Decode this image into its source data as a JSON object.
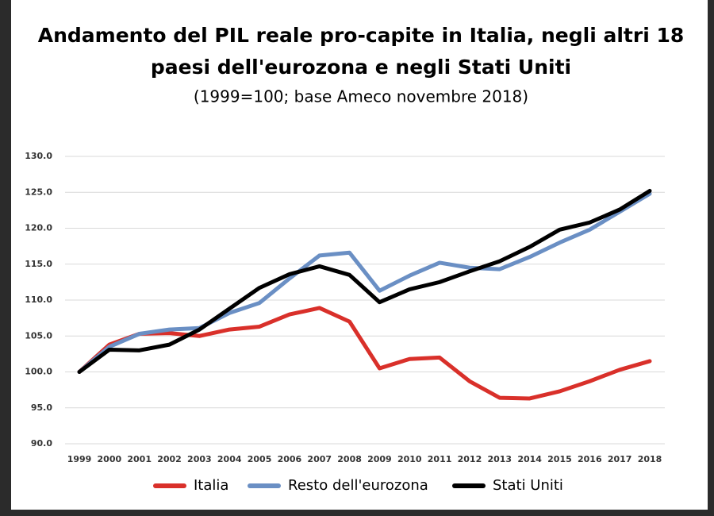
{
  "chart_data": {
    "type": "line",
    "title": [
      "Andamento del PIL reale pro-capite in Italia, negli altri 18",
      "paesi dell'eurozona e negli Stati Uniti"
    ],
    "subtitle": "(1999=100; base Ameco novembre 2018)",
    "categories": [
      "1999",
      "2000",
      "2001",
      "2002",
      "2003",
      "2004",
      "2005",
      "2006",
      "2007",
      "2008",
      "2009",
      "2010",
      "2011",
      "2012",
      "2013",
      "2014",
      "2015",
      "2016",
      "2017",
      "2018"
    ],
    "series": [
      {
        "name": "Italia",
        "color": "#d9302a",
        "values": [
          100,
          103.8,
          105.3,
          105.4,
          105.0,
          105.9,
          106.3,
          108.0,
          108.9,
          107.0,
          100.5,
          101.8,
          102.0,
          98.7,
          96.4,
          96.3,
          97.3,
          98.7,
          100.3,
          101.5
        ]
      },
      {
        "name": "Resto dell'eurozona",
        "color": "#6a8fc4",
        "values": [
          100,
          103.5,
          105.3,
          105.9,
          106.1,
          108.2,
          109.6,
          113.0,
          116.2,
          116.6,
          111.3,
          113.4,
          115.2,
          114.5,
          114.3,
          116.0,
          118.0,
          119.8,
          122.3,
          124.8
        ]
      },
      {
        "name": "Stati Uniti",
        "color": "#000000",
        "values": [
          100,
          103.1,
          103.0,
          103.8,
          105.9,
          108.8,
          111.7,
          113.6,
          114.7,
          113.5,
          109.7,
          111.5,
          112.5,
          114.0,
          115.4,
          117.4,
          119.8,
          120.8,
          122.6,
          125.2
        ]
      }
    ],
    "ylim": [
      90,
      130
    ],
    "yticks": [
      {
        "value": 90,
        "label": "90.0"
      },
      {
        "value": 95,
        "label": "95.0"
      },
      {
        "value": 100,
        "label": "100.0"
      },
      {
        "value": 105,
        "label": "105.0"
      },
      {
        "value": 110,
        "label": "110.0"
      },
      {
        "value": 115,
        "label": "115.0"
      },
      {
        "value": 120,
        "label": "120.0"
      },
      {
        "value": 125,
        "label": "125.0"
      },
      {
        "value": 130,
        "label": "130.0"
      }
    ],
    "grid": true,
    "legend": "bottom"
  }
}
